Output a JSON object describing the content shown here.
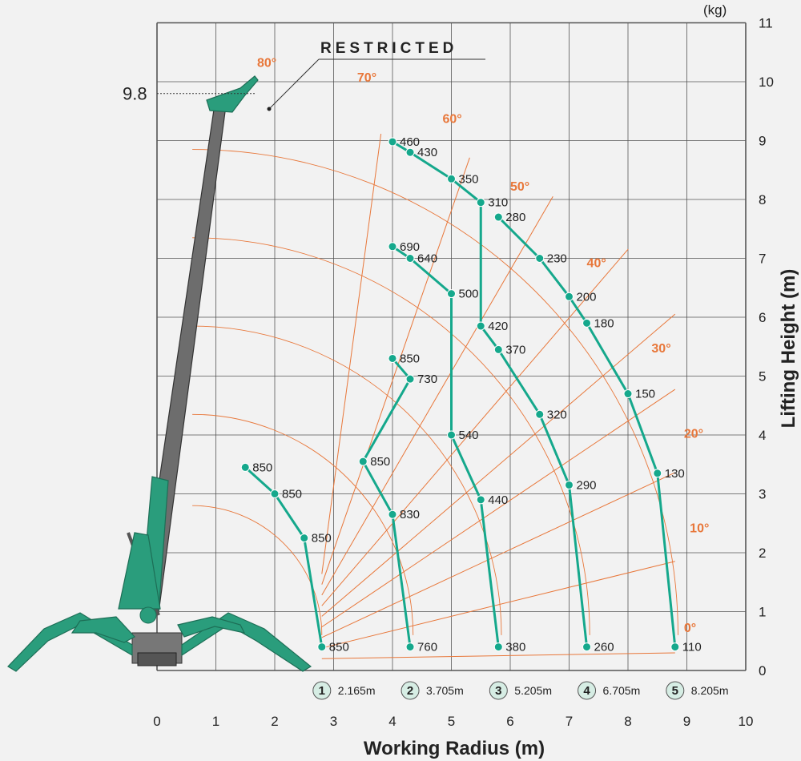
{
  "chart_data": {
    "type": "line",
    "xlabel": "Working Radius (m)",
    "ylabel": "Lifting Height (m)",
    "unit_label": "(kg)",
    "xlim": [
      0,
      10
    ],
    "ylim": [
      0,
      11
    ],
    "x_ticks": [
      "0",
      "1",
      "2",
      "3",
      "4",
      "5",
      "6",
      "7",
      "8",
      "9",
      "10"
    ],
    "y_ticks": [
      "0",
      "1",
      "2",
      "3",
      "4",
      "5",
      "6",
      "7",
      "8",
      "9",
      "10",
      "11"
    ],
    "max_height_label": "9.8",
    "max_height_value": 9.8,
    "restricted_label": "RESTRICTED",
    "boom_angles": [
      "0°",
      "10°",
      "20°",
      "30°",
      "40°",
      "50°",
      "60°",
      "70°",
      "80°"
    ],
    "grid": true,
    "series": [
      {
        "name": "1",
        "radius": "2.165m",
        "points": [
          {
            "x": 2.8,
            "y": 0.4,
            "load": "850"
          },
          {
            "x": 2.5,
            "y": 2.25,
            "load": "850"
          },
          {
            "x": 2.0,
            "y": 3.0,
            "load": "850"
          },
          {
            "x": 1.5,
            "y": 3.45,
            "load": "850"
          }
        ]
      },
      {
        "name": "2",
        "radius": "3.705m",
        "points": [
          {
            "x": 4.3,
            "y": 0.4,
            "load": "760"
          },
          {
            "x": 4.0,
            "y": 2.65,
            "load": "830"
          },
          {
            "x": 3.5,
            "y": 3.55,
            "load": "850"
          },
          {
            "x": 4.3,
            "y": 4.95,
            "load": "730"
          },
          {
            "x": 4.0,
            "y": 5.3,
            "load": "850"
          }
        ]
      },
      {
        "name": "3",
        "radius": "5.205m",
        "points": [
          {
            "x": 5.8,
            "y": 0.4,
            "load": "380"
          },
          {
            "x": 5.5,
            "y": 2.9,
            "load": "440"
          },
          {
            "x": 5.0,
            "y": 4.0,
            "load": "540"
          },
          {
            "x": 5.0,
            "y": 6.4,
            "load": "500"
          },
          {
            "x": 4.3,
            "y": 7.0,
            "load": "640"
          },
          {
            "x": 4.0,
            "y": 7.2,
            "load": "690"
          }
        ]
      },
      {
        "name": "4",
        "radius": "6.705m",
        "points": [
          {
            "x": 7.3,
            "y": 0.4,
            "load": "260"
          },
          {
            "x": 7.0,
            "y": 3.15,
            "load": "290"
          },
          {
            "x": 6.5,
            "y": 4.35,
            "load": "320"
          },
          {
            "x": 5.8,
            "y": 5.45,
            "load": "370"
          },
          {
            "x": 5.5,
            "y": 5.85,
            "load": "420"
          },
          {
            "x": 5.5,
            "y": 7.95,
            "load": "310"
          },
          {
            "x": 5.0,
            "y": 8.35,
            "load": "350"
          },
          {
            "x": 4.3,
            "y": 8.8,
            "load": "430"
          },
          {
            "x": 4.0,
            "y": 8.98,
            "load": "460"
          }
        ]
      },
      {
        "name": "5",
        "radius": "8.205m",
        "points": [
          {
            "x": 8.8,
            "y": 0.4,
            "load": "110"
          },
          {
            "x": 8.5,
            "y": 3.35,
            "load": "130"
          },
          {
            "x": 8.0,
            "y": 4.7,
            "load": "150"
          },
          {
            "x": 7.3,
            "y": 5.9,
            "load": "180"
          },
          {
            "x": 7.0,
            "y": 6.35,
            "load": "200"
          },
          {
            "x": 6.5,
            "y": 7.0,
            "load": "230"
          },
          {
            "x": 5.8,
            "y": 7.7,
            "load": "280"
          }
        ]
      }
    ]
  },
  "colors": {
    "curve": "#15a88c",
    "angle": "#e8773a",
    "grid": "#555555",
    "boom_dark": "#6d6d6d",
    "crane_green": "#2a9d7c"
  }
}
